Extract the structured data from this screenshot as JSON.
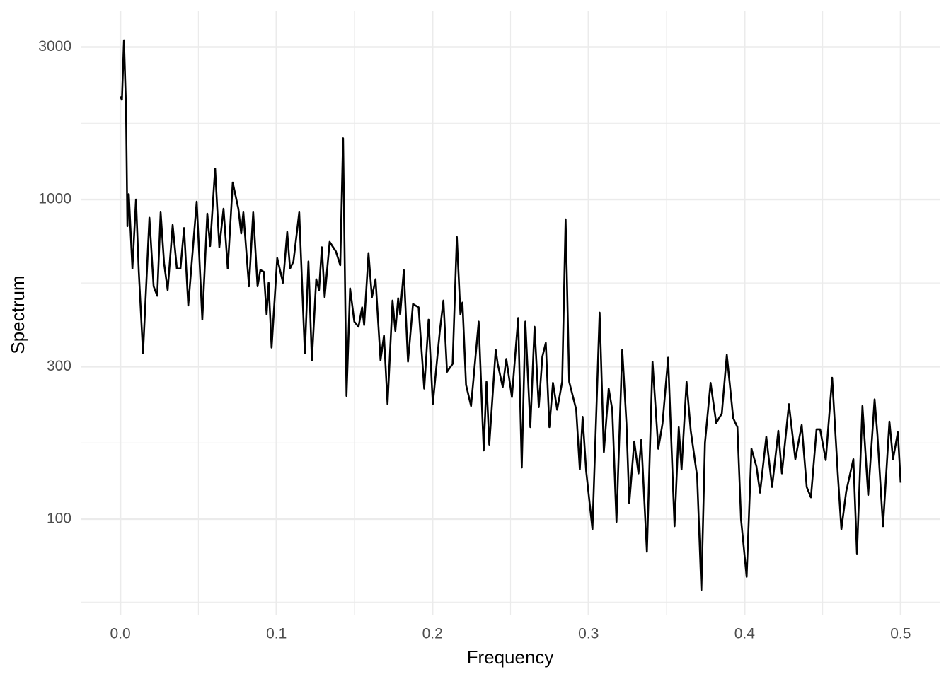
{
  "chart_data": {
    "type": "line",
    "x_label": "Frequency",
    "y_label": "Spectrum",
    "log_y": true,
    "grid": true,
    "xlim": [
      -0.025,
      0.525
    ],
    "ylim": [
      50,
      3900
    ],
    "xticks": [
      {
        "value": 0,
        "label": "0.0"
      },
      0.1,
      0.2,
      0.3,
      0.4,
      0.5
    ],
    "yticks": [
      100,
      300,
      1000,
      3000
    ],
    "x_minor_ticks": [
      0.05,
      0.15,
      0.25,
      0.35,
      0.45
    ],
    "y_minor_ticks": [
      55,
      173,
      548,
      1732
    ],
    "series": [
      {
        "name": "Spectrum",
        "color": "#000000",
        "x": [
          0,
          0.001,
          0.0023,
          0.0036,
          0.0045,
          0.0054,
          0.0077,
          0.01,
          0.0118,
          0.0145,
          0.0186,
          0.0213,
          0.0236,
          0.0258,
          0.028,
          0.0303,
          0.0335,
          0.0362,
          0.0385,
          0.0408,
          0.0435,
          0.0489,
          0.0525,
          0.0557,
          0.0575,
          0.0607,
          0.0634,
          0.0661,
          0.0688,
          0.072,
          0.0756,
          0.0774,
          0.0788,
          0.0824,
          0.0851,
          0.0879,
          0.0897,
          0.0919,
          0.0937,
          0.095,
          0.0969,
          0.1005,
          0.1042,
          0.1069,
          0.1087,
          0.1109,
          0.1146,
          0.1182,
          0.1205,
          0.1227,
          0.1255,
          0.1273,
          0.1291,
          0.1309,
          0.1341,
          0.1381,
          0.1409,
          0.1427,
          0.1449,
          0.1472,
          0.1499,
          0.1526,
          0.1549,
          0.1562,
          0.159,
          0.1612,
          0.1635,
          0.1667,
          0.1689,
          0.1712,
          0.1744,
          0.1762,
          0.178,
          0.1793,
          0.1816,
          0.1843,
          0.1875,
          0.1911,
          0.1947,
          0.1975,
          0.2002,
          0.2047,
          0.207,
          0.2093,
          0.2129,
          0.2156,
          0.2179,
          0.2192,
          0.2215,
          0.2247,
          0.2296,
          0.2328,
          0.2346,
          0.2364,
          0.2405,
          0.2418,
          0.245,
          0.2473,
          0.2509,
          0.2549,
          0.2572,
          0.2595,
          0.2627,
          0.2654,
          0.2681,
          0.2704,
          0.2726,
          0.2749,
          0.2772,
          0.2799,
          0.2831,
          0.2853,
          0.2876,
          0.2921,
          0.2944,
          0.2962,
          0.2985,
          0.3025,
          0.3071,
          0.3098,
          0.3129,
          0.3152,
          0.3179,
          0.3216,
          0.3243,
          0.3261,
          0.3293,
          0.332,
          0.3338,
          0.3374,
          0.341,
          0.3447,
          0.3474,
          0.351,
          0.3551,
          0.3578,
          0.3596,
          0.3628,
          0.3655,
          0.3696,
          0.3723,
          0.3746,
          0.3782,
          0.3818,
          0.3854,
          0.3886,
          0.3927,
          0.3954,
          0.3977,
          0.4013,
          0.4044,
          0.4076,
          0.4099,
          0.4139,
          0.4176,
          0.4216,
          0.4239,
          0.4284,
          0.4325,
          0.4366,
          0.4398,
          0.4425,
          0.4461,
          0.4484,
          0.452,
          0.4561,
          0.4597,
          0.462,
          0.4651,
          0.4697,
          0.472,
          0.4755,
          0.4792,
          0.4833,
          0.4851,
          0.4887,
          0.4928,
          0.4951,
          0.4982,
          0.5
        ],
        "values": [
          2100,
          2050,
          3150,
          1950,
          825,
          1040,
          608,
          1000,
          594,
          330,
          877,
          535,
          500,
          912,
          632,
          521,
          833,
          608,
          608,
          814,
          466,
          985,
          421,
          903,
          715,
          1250,
          709,
          936,
          608,
          1130,
          936,
          783,
          912,
          535,
          912,
          535,
          602,
          594,
          437,
          549,
          344,
          656,
          549,
          792,
          608,
          640,
          912,
          330,
          640,
          314,
          563,
          521,
          709,
          495,
          737,
          688,
          623,
          1555,
          243,
          527,
          415,
          400,
          460,
          405,
          680,
          495,
          563,
          314,
          375,
          229,
          483,
          388,
          491,
          437,
          602,
          311,
          471,
          460,
          256,
          421,
          229,
          388,
          483,
          289,
          306,
          764,
          437,
          476,
          263,
          226,
          415,
          164,
          269,
          171,
          339,
          306,
          259,
          317,
          241,
          426,
          145,
          415,
          194,
          400,
          224,
          322,
          356,
          194,
          267,
          220,
          269,
          867,
          269,
          220,
          143,
          209,
          141,
          93,
          443,
          162,
          256,
          220,
          98,
          339,
          199,
          112,
          175,
          139,
          177,
          79,
          311,
          166,
          199,
          320,
          95,
          194,
          143,
          269,
          189,
          136,
          60,
          173,
          267,
          200,
          214,
          327,
          207,
          194,
          100,
          66,
          166,
          146,
          121,
          181,
          126,
          189,
          139,
          229,
          154,
          197,
          126,
          117,
          191,
          191,
          153,
          277,
          139,
          93,
          122,
          154,
          78,
          226,
          119,
          237,
          184,
          95,
          202,
          154,
          187,
          130
        ]
      }
    ]
  }
}
